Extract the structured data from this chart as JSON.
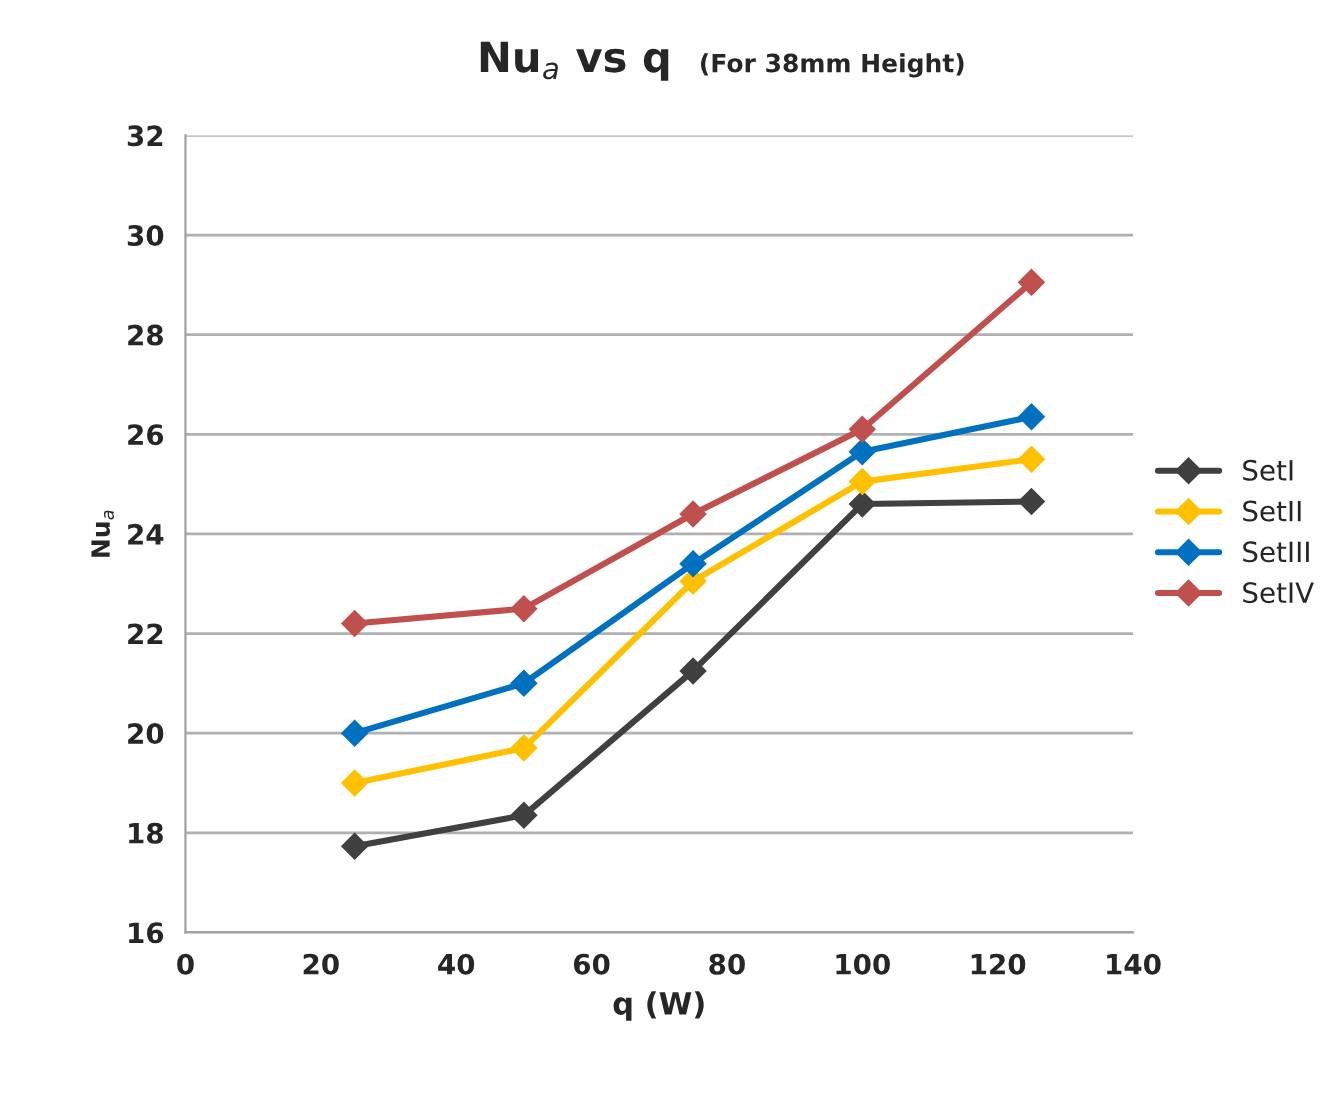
{
  "chart_data": {
    "type": "line",
    "title": "Nu$_{a}$ vs q",
    "subtitle": "(For 38mm Height)",
    "xlabel": "q (W)",
    "ylabel": "Nu$_{a}$",
    "x": [
      25,
      50,
      75,
      100,
      125
    ],
    "series": [
      {
        "name": "SetI",
        "color": "#404040",
        "values": [
          17.73,
          18.35,
          21.25,
          24.6,
          24.65
        ]
      },
      {
        "name": "SetII",
        "color": "#ffc000",
        "values": [
          19.0,
          19.7,
          23.05,
          25.05,
          25.5
        ]
      },
      {
        "name": "SetIII",
        "color": "#0070c0",
        "values": [
          20.0,
          21.0,
          23.4,
          25.65,
          26.35
        ]
      },
      {
        "name": "SetIV",
        "color": "#c0504d",
        "values": [
          22.2,
          22.5,
          24.4,
          26.1,
          29.05
        ]
      }
    ],
    "xlim": [
      0,
      140
    ],
    "xticks": [
      0,
      20,
      40,
      60,
      80,
      100,
      120,
      140
    ],
    "ylim": [
      16,
      32
    ],
    "yticks": [
      16,
      18,
      20,
      22,
      24,
      26,
      28,
      30,
      32
    ],
    "grid": "y",
    "legend": "right",
    "marker": "diamond",
    "line_style": "solid"
  }
}
